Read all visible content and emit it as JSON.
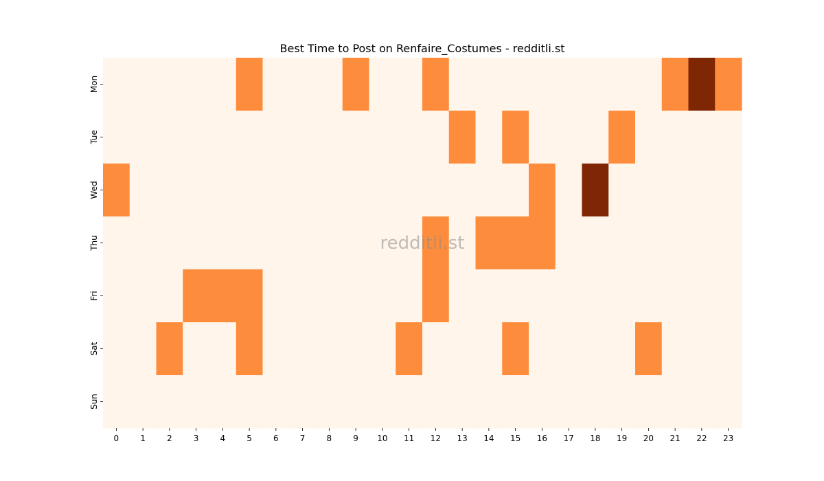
{
  "chart_data": {
    "type": "heatmap",
    "title": "Best Time to Post on Renfaire_Costumes - redditli.st",
    "watermark": "redditli.st",
    "xlabel": "",
    "ylabel": "",
    "x_categories": [
      "0",
      "1",
      "2",
      "3",
      "4",
      "5",
      "6",
      "7",
      "8",
      "9",
      "10",
      "11",
      "12",
      "13",
      "14",
      "15",
      "16",
      "17",
      "18",
      "19",
      "20",
      "21",
      "22",
      "23"
    ],
    "y_categories": [
      "Mon",
      "Tue",
      "Wed",
      "Thu",
      "Fri",
      "Sat",
      "Sun"
    ],
    "values": [
      [
        0,
        0,
        0,
        0,
        0,
        1,
        0,
        0,
        0,
        1,
        0,
        0,
        1,
        0,
        0,
        0,
        0,
        0,
        0,
        0,
        0,
        1,
        2,
        1
      ],
      [
        0,
        0,
        0,
        0,
        0,
        0,
        0,
        0,
        0,
        0,
        0,
        0,
        0,
        1,
        0,
        1,
        0,
        0,
        0,
        1,
        0,
        0,
        0,
        0
      ],
      [
        1,
        0,
        0,
        0,
        0,
        0,
        0,
        0,
        0,
        0,
        0,
        0,
        0,
        0,
        0,
        0,
        1,
        0,
        2,
        0,
        0,
        0,
        0,
        0
      ],
      [
        0,
        0,
        0,
        0,
        0,
        0,
        0,
        0,
        0,
        0,
        0,
        0,
        1,
        0,
        1,
        1,
        1,
        0,
        0,
        0,
        0,
        0,
        0,
        0
      ],
      [
        0,
        0,
        0,
        1,
        1,
        1,
        0,
        0,
        0,
        0,
        0,
        0,
        1,
        0,
        0,
        0,
        0,
        0,
        0,
        0,
        0,
        0,
        0,
        0
      ],
      [
        0,
        0,
        1,
        0,
        0,
        1,
        0,
        0,
        0,
        0,
        0,
        1,
        0,
        0,
        0,
        1,
        0,
        0,
        0,
        0,
        1,
        0,
        0,
        0
      ],
      [
        0,
        0,
        0,
        0,
        0,
        0,
        0,
        0,
        0,
        0,
        0,
        0,
        0,
        0,
        0,
        0,
        0,
        0,
        0,
        0,
        0,
        0,
        0,
        0
      ]
    ],
    "colors": {
      "0": "#fff5eb",
      "1": "#fd8d3c",
      "2": "#7f2704"
    },
    "colormap": "Oranges",
    "grid": false,
    "legend": "none"
  }
}
